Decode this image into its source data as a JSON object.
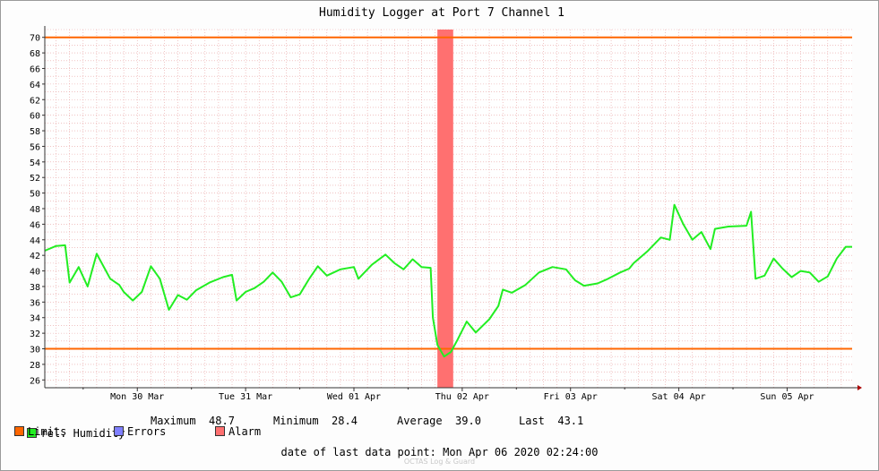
{
  "chart_data": {
    "type": "line",
    "title": "Humidity Logger at Port 7 Channel 1",
    "y_ticks": [
      26,
      28,
      30,
      32,
      34,
      36,
      38,
      40,
      42,
      44,
      46,
      48,
      50,
      52,
      54,
      56,
      58,
      60,
      62,
      64,
      66,
      68,
      70
    ],
    "ylim": [
      25,
      71
    ],
    "x_range_days": [
      "2020-03-29 15:30",
      "2020-04-06 02:24"
    ],
    "x_ticks": [
      {
        "label": "Mon 30 Mar",
        "at": "2020-03-30 12:00"
      },
      {
        "label": "Tue 31 Mar",
        "at": "2020-03-31 12:00"
      },
      {
        "label": "Wed 01 Apr",
        "at": "2020-04-01 12:00"
      },
      {
        "label": "Thu 02 Apr",
        "at": "2020-04-02 12:00"
      },
      {
        "label": "Fri 03 Apr",
        "at": "2020-04-03 12:00"
      },
      {
        "label": "Sat 04 Apr",
        "at": "2020-04-04 12:00"
      },
      {
        "label": "Sun 05 Apr",
        "at": "2020-04-05 12:00"
      }
    ],
    "limits": [
      30,
      70
    ],
    "alarm_band": [
      "2020-04-02 06:30",
      "2020-04-02 10:00"
    ],
    "series": [
      {
        "name": "rel. Humidity",
        "color": "#22ee22",
        "points": [
          [
            "2020-03-29 15:30",
            42.6
          ],
          [
            "2020-03-29 18:00",
            43.2
          ],
          [
            "2020-03-29 20:00",
            43.3
          ],
          [
            "2020-03-29 21:00",
            38.5
          ],
          [
            "2020-03-29 23:00",
            40.5
          ],
          [
            "2020-03-30 01:00",
            38.0
          ],
          [
            "2020-03-30 03:00",
            42.2
          ],
          [
            "2020-03-30 06:00",
            39.0
          ],
          [
            "2020-03-30 08:00",
            38.2
          ],
          [
            "2020-03-30 09:00",
            37.3
          ],
          [
            "2020-03-30 11:00",
            36.2
          ],
          [
            "2020-03-30 13:00",
            37.3
          ],
          [
            "2020-03-30 15:00",
            40.6
          ],
          [
            "2020-03-30 17:00",
            39.0
          ],
          [
            "2020-03-30 19:00",
            35.0
          ],
          [
            "2020-03-30 21:00",
            36.9
          ],
          [
            "2020-03-30 23:00",
            36.3
          ],
          [
            "2020-03-31 01:00",
            37.5
          ],
          [
            "2020-03-31 04:00",
            38.5
          ],
          [
            "2020-03-31 07:00",
            39.2
          ],
          [
            "2020-03-31 09:00",
            39.5
          ],
          [
            "2020-03-31 10:00",
            36.2
          ],
          [
            "2020-03-31 12:00",
            37.3
          ],
          [
            "2020-03-31 14:00",
            37.8
          ],
          [
            "2020-03-31 16:00",
            38.6
          ],
          [
            "2020-03-31 18:00",
            39.8
          ],
          [
            "2020-03-31 20:00",
            38.6
          ],
          [
            "2020-03-31 22:00",
            36.6
          ],
          [
            "2020-04-01 00:00",
            37.0
          ],
          [
            "2020-04-01 02:00",
            38.9
          ],
          [
            "2020-04-01 04:00",
            40.6
          ],
          [
            "2020-04-01 06:00",
            39.4
          ],
          [
            "2020-04-01 09:00",
            40.2
          ],
          [
            "2020-04-01 12:00",
            40.5
          ],
          [
            "2020-04-01 13:00",
            39.0
          ],
          [
            "2020-04-01 16:00",
            40.8
          ],
          [
            "2020-04-01 19:00",
            42.1
          ],
          [
            "2020-04-01 21:00",
            41.0
          ],
          [
            "2020-04-01 23:00",
            40.2
          ],
          [
            "2020-04-02 01:00",
            41.5
          ],
          [
            "2020-04-02 03:00",
            40.5
          ],
          [
            "2020-04-02 05:00",
            40.4
          ],
          [
            "2020-04-02 05:30",
            34.0
          ],
          [
            "2020-04-02 06:30",
            30.5
          ],
          [
            "2020-04-02 08:00",
            29.0
          ],
          [
            "2020-04-02 09:30",
            29.6
          ],
          [
            "2020-04-02 11:00",
            31.2
          ],
          [
            "2020-04-02 13:00",
            33.5
          ],
          [
            "2020-04-02 15:00",
            32.1
          ],
          [
            "2020-04-02 18:00",
            33.8
          ],
          [
            "2020-04-02 20:00",
            35.5
          ],
          [
            "2020-04-02 21:00",
            37.6
          ],
          [
            "2020-04-02 23:00",
            37.2
          ],
          [
            "2020-04-03 02:00",
            38.2
          ],
          [
            "2020-04-03 05:00",
            39.8
          ],
          [
            "2020-04-03 08:00",
            40.5
          ],
          [
            "2020-04-03 11:00",
            40.2
          ],
          [
            "2020-04-03 13:00",
            38.8
          ],
          [
            "2020-04-03 15:00",
            38.1
          ],
          [
            "2020-04-03 18:00",
            38.4
          ],
          [
            "2020-04-03 20:00",
            38.9
          ],
          [
            "2020-04-03 23:00",
            39.8
          ],
          [
            "2020-04-04 01:00",
            40.3
          ],
          [
            "2020-04-04 02:00",
            41.0
          ],
          [
            "2020-04-04 05:00",
            42.5
          ],
          [
            "2020-04-04 08:00",
            44.3
          ],
          [
            "2020-04-04 10:00",
            44.0
          ],
          [
            "2020-04-04 11:00",
            48.5
          ],
          [
            "2020-04-04 13:00",
            46.0
          ],
          [
            "2020-04-04 15:00",
            44.0
          ],
          [
            "2020-04-04 17:00",
            45.0
          ],
          [
            "2020-04-04 19:00",
            42.8
          ],
          [
            "2020-04-04 20:00",
            45.4
          ],
          [
            "2020-04-04 23:00",
            45.7
          ],
          [
            "2020-04-05 03:00",
            45.8
          ],
          [
            "2020-04-05 04:00",
            47.6
          ],
          [
            "2020-04-05 05:00",
            39.0
          ],
          [
            "2020-04-05 07:00",
            39.4
          ],
          [
            "2020-04-05 09:00",
            41.6
          ],
          [
            "2020-04-05 11:00",
            40.3
          ],
          [
            "2020-04-05 13:00",
            39.2
          ],
          [
            "2020-04-05 15:00",
            40.0
          ],
          [
            "2020-04-05 17:00",
            39.8
          ],
          [
            "2020-04-05 19:00",
            38.6
          ],
          [
            "2020-04-05 21:00",
            39.3
          ],
          [
            "2020-04-05 23:00",
            41.6
          ],
          [
            "2020-04-06 01:00",
            43.1
          ],
          [
            "2020-04-06 02:24",
            43.1
          ]
        ]
      }
    ],
    "stats": {
      "series_label": "rel. Humidity",
      "max_label": "Maximum",
      "max": "48.7",
      "min_label": "Minimum",
      "min": "28.4",
      "avg_label": "Average",
      "avg": "39.0",
      "last_label": "Last",
      "last": "43.1"
    },
    "legend": [
      {
        "label": "Limits",
        "color": "#ff6600"
      },
      {
        "label": "Errors",
        "color": "#7f7fff"
      },
      {
        "label": "Alarm",
        "color": "#ff7070"
      }
    ],
    "colors": {
      "series": "#22ee22",
      "limits": "#ff6600",
      "alarm": "#ff7070",
      "grid": "#e8a0a0"
    }
  },
  "footer": {
    "label": "date of last data point:",
    "value": "Mon Apr 06 2020 02:24:00"
  },
  "watermark": "OCTAS Log & Guard"
}
